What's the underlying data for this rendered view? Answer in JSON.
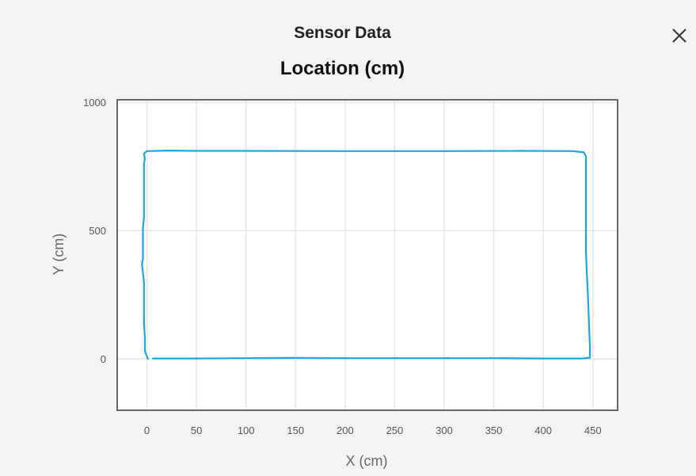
{
  "dialog": {
    "title": "Sensor Data",
    "close_icon": "close-icon"
  },
  "chart_data": {
    "type": "line",
    "title": "Location (cm)",
    "xlabel": "X (cm)",
    "ylabel": "Y (cm)",
    "xlim": [
      -30,
      475
    ],
    "ylim": [
      -200,
      1010
    ],
    "x_ticks": [
      0,
      50,
      100,
      150,
      200,
      250,
      300,
      350,
      400,
      450
    ],
    "y_ticks": [
      0,
      500,
      1000
    ],
    "grid": true,
    "legend": "none",
    "colors": {
      "line": "#1aa7e8",
      "grid": "#e6e6e6",
      "frame": "#666666",
      "plot_bg": "#ffffff"
    },
    "series": [
      {
        "x": [
          6,
          50,
          100,
          150,
          200,
          250,
          300,
          350,
          400,
          440,
          447,
          447,
          446,
          445,
          444,
          443,
          443,
          443,
          443,
          443,
          443,
          441,
          430,
          380,
          300,
          200,
          100,
          50,
          20,
          0,
          -3,
          -2,
          -3,
          -3,
          -3,
          -4,
          -4,
          -4,
          -5,
          -3,
          -3,
          -3,
          -2,
          -2,
          1
        ],
        "y": [
          2,
          2,
          3,
          4,
          3,
          3,
          3,
          3,
          2,
          2,
          5,
          50,
          150,
          250,
          330,
          420,
          500,
          600,
          700,
          760,
          790,
          805,
          810,
          811,
          810,
          810,
          811,
          811,
          812,
          810,
          800,
          780,
          760,
          650,
          550,
          510,
          430,
          390,
          370,
          300,
          180,
          150,
          80,
          30,
          0
        ]
      }
    ]
  }
}
